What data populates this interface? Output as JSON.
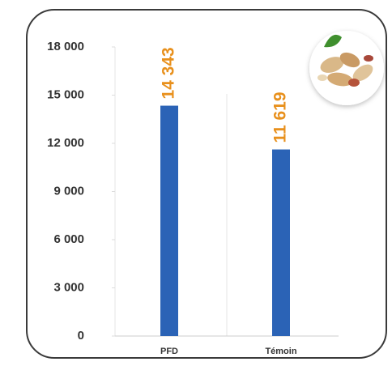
{
  "chart_data": {
    "type": "bar",
    "categories": [
      "PFD",
      "Témoin"
    ],
    "values": [
      14343,
      11619
    ],
    "value_labels": [
      "14 343",
      "11 619"
    ],
    "color": "#2b63b6",
    "label_color": "#e8901c",
    "ylim": [
      0,
      18000
    ],
    "yticks": [
      {
        "value": 0,
        "label": "0"
      },
      {
        "value": 3000,
        "label": "3 000"
      },
      {
        "value": 6000,
        "label": "6 000"
      },
      {
        "value": 9000,
        "label": "9 000"
      },
      {
        "value": 12000,
        "label": "12 000"
      },
      {
        "value": 15000,
        "label": "15 000"
      },
      {
        "value": 18000,
        "label": "18 000"
      }
    ]
  }
}
